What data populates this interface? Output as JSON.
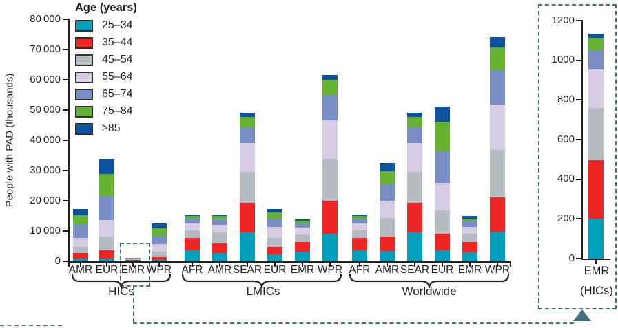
{
  "chart_data": {
    "type": "bar",
    "stacked": true,
    "title": "",
    "xlabel": "",
    "ylabel": "People with PAD (thousands)",
    "ylim": [
      0,
      80000
    ],
    "ytick_step": 10000,
    "ytick_labels": [
      "0",
      "10 000",
      "20 000",
      "30 000",
      "40 000",
      "50 000",
      "60 000",
      "70 000",
      "80 000"
    ],
    "grid": false,
    "legend_position": "top-left-inside",
    "legend": {
      "title": "Age (years)",
      "entries": [
        {
          "label": "25–34",
          "color": "#009fbb"
        },
        {
          "label": "35–44",
          "color": "#ee2724"
        },
        {
          "label": "45–54",
          "color": "#b4bcc2"
        },
        {
          "label": "55–64",
          "color": "#d8cce5"
        },
        {
          "label": "65–74",
          "color": "#7a8fc6"
        },
        {
          "label": "75–84",
          "color": "#64b22f"
        },
        {
          "label": "≥85",
          "color": "#0d529e"
        }
      ]
    },
    "groups": [
      {
        "label": "HICs",
        "categories": [
          "AMR",
          "EUR",
          "EMR",
          "WPR"
        ],
        "values": [
          [
            1000,
            1700,
            2000,
            3100,
            4400,
            3000,
            2100
          ],
          [
            950,
            2700,
            4600,
            5300,
            8000,
            7400,
            4900
          ],
          [
            200,
            295,
            265,
            195,
            95,
            65,
            20
          ],
          [
            500,
            900,
            1900,
            2400,
            2800,
            2400,
            1700
          ]
        ]
      },
      {
        "label": "LMICs",
        "categories": [
          "AFR",
          "AMR",
          "SEAR",
          "EUR",
          "EMR",
          "WPR"
        ],
        "values": [
          [
            3700,
            4000,
            2600,
            2300,
            1500,
            850,
            550
          ],
          [
            2700,
            3300,
            3500,
            2500,
            1900,
            1000,
            600
          ],
          [
            9500,
            9900,
            10100,
            9600,
            5300,
            3450,
            1300
          ],
          [
            2350,
            2500,
            2800,
            3650,
            2900,
            2050,
            1000
          ],
          [
            3100,
            3250,
            2500,
            2300,
            1450,
            850,
            450
          ],
          [
            9200,
            10700,
            13900,
            12700,
            8600,
            4900,
            1700
          ]
        ]
      },
      {
        "label": "Worldwide",
        "categories": [
          "AFR",
          "AMR",
          "SEAR",
          "EUR",
          "EMR",
          "WPR"
        ],
        "values": [
          [
            3700,
            4000,
            2600,
            2300,
            1500,
            850,
            550
          ],
          [
            3400,
            4900,
            6000,
            5800,
            5400,
            4300,
            2750
          ],
          [
            9500,
            9900,
            10100,
            9600,
            5300,
            3450,
            1300
          ],
          [
            3700,
            5350,
            7800,
            9000,
            10450,
            9800,
            4950
          ],
          [
            3000,
            3450,
            2650,
            2300,
            2050,
            750,
            750
          ],
          [
            9800,
            11400,
            15700,
            14900,
            11300,
            7700,
            3300
          ]
        ]
      }
    ],
    "highlight": {
      "group": "HICs",
      "category": "EMR"
    },
    "inset": {
      "ylim": [
        0,
        1200
      ],
      "ytick_step": 200,
      "ytick_labels": [
        "0",
        "200",
        "400",
        "600",
        "800",
        "1000",
        "1200"
      ],
      "category": "EMR",
      "sublabel": "(HICs)",
      "values": [
        200,
        295,
        265,
        195,
        95,
        65,
        20
      ]
    }
  }
}
